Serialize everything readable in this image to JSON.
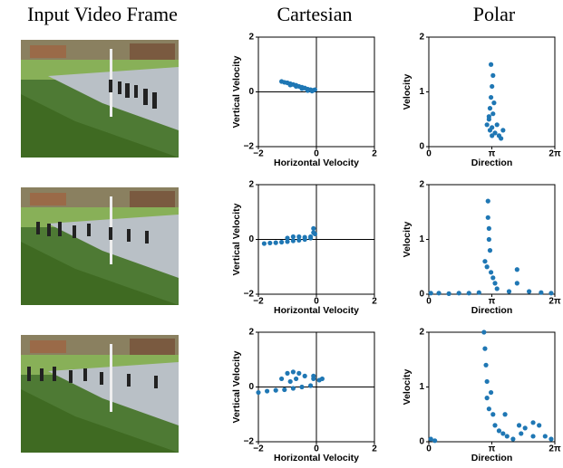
{
  "header": {
    "columns": [
      "Input Video Frame",
      "Cartesian",
      "Polar"
    ]
  },
  "chart_data": [
    {
      "type": "scatter",
      "xlabel": "Horizontal Velocity",
      "ylabel": "Vertical Velocity",
      "color": "#1f77b4",
      "zero_lines": true,
      "xlim": [
        -2,
        2
      ],
      "ylim": [
        -2,
        2
      ],
      "xticks": [
        {
          "value": -2,
          "label": "−2"
        },
        0,
        2
      ],
      "yticks": [
        {
          "value": -2,
          "label": "−2"
        },
        0,
        2
      ],
      "x": [
        -1.2,
        -1.1,
        -1.0,
        -0.9,
        -0.8,
        -0.7,
        -0.6,
        -0.5,
        -0.4,
        -0.3,
        -0.2,
        -0.1,
        -0.05,
        -0.9,
        -0.7,
        -0.5,
        -0.3,
        -0.15
      ],
      "y": [
        0.38,
        0.35,
        0.33,
        0.3,
        0.27,
        0.24,
        0.2,
        0.17,
        0.14,
        0.1,
        0.08,
        0.06,
        0.08,
        0.25,
        0.2,
        0.12,
        0.05,
        0.03
      ]
    },
    {
      "type": "scatter",
      "xlabel": "Direction",
      "ylabel": "Velocity",
      "color": "#1f77b4",
      "zero_lines": false,
      "xlim": [
        0,
        6.28319
      ],
      "ylim": [
        0,
        2
      ],
      "xticks": [
        0,
        {
          "value": 3.14159,
          "label": "π"
        },
        {
          "value": 6.28319,
          "label": "2π"
        }
      ],
      "yticks": [
        0,
        1,
        2
      ],
      "x": [
        3.0,
        3.05,
        3.1,
        3.15,
        3.2,
        3.1,
        3.05,
        3.15,
        3.3,
        3.5,
        3.6,
        3.7,
        3.4,
        3.2,
        3.25,
        2.9,
        3.0,
        3.15
      ],
      "y": [
        0.5,
        0.7,
        0.9,
        1.1,
        1.3,
        1.5,
        0.3,
        0.2,
        0.25,
        0.2,
        0.15,
        0.3,
        0.4,
        0.6,
        0.8,
        0.4,
        0.55,
        0.35
      ]
    },
    {
      "type": "scatter",
      "xlabel": "Horizontal Velocity",
      "ylabel": "Vertical Velocity",
      "color": "#1f77b4",
      "zero_lines": true,
      "xlim": [
        -2,
        2
      ],
      "ylim": [
        -2,
        2
      ],
      "xticks": [
        {
          "value": -2,
          "label": "−2"
        },
        0,
        2
      ],
      "yticks": [
        {
          "value": -2,
          "label": "−2"
        },
        0,
        2
      ],
      "x": [
        -1.8,
        -1.6,
        -1.4,
        -1.2,
        -1.0,
        -0.8,
        -0.6,
        -0.4,
        -0.2,
        -0.1,
        -0.05,
        -1.0,
        -0.8,
        -0.6,
        -0.4,
        -0.2,
        -0.1
      ],
      "y": [
        -0.15,
        -0.13,
        -0.12,
        -0.1,
        -0.08,
        -0.05,
        -0.03,
        0,
        0.05,
        0.4,
        0.2,
        0.05,
        0.1,
        0.1,
        0.08,
        0.1,
        0.25
      ]
    },
    {
      "type": "scatter",
      "xlabel": "Direction",
      "ylabel": "Velocity",
      "color": "#1f77b4",
      "zero_lines": false,
      "xlim": [
        0,
        6.28319
      ],
      "ylim": [
        0,
        2
      ],
      "xticks": [
        0,
        {
          "value": 3.14159,
          "label": "π"
        },
        {
          "value": 6.28319,
          "label": "2π"
        }
      ],
      "yticks": [
        0,
        1,
        2
      ],
      "x": [
        0.1,
        0.5,
        1.0,
        1.5,
        2.0,
        2.5,
        2.95,
        2.95,
        3.0,
        3.0,
        3.05,
        2.8,
        2.9,
        3.1,
        3.2,
        3.3,
        3.4,
        4.4,
        4.4,
        4.0,
        5.0,
        5.6,
        6.1
      ],
      "y": [
        0.02,
        0.02,
        0.01,
        0.02,
        0.02,
        0.03,
        1.7,
        1.4,
        1.2,
        1.0,
        0.8,
        0.6,
        0.5,
        0.4,
        0.3,
        0.2,
        0.1,
        0.45,
        0.2,
        0.05,
        0.05,
        0.03,
        0.02
      ]
    },
    {
      "type": "scatter",
      "xlabel": "Horizontal Velocity",
      "ylabel": "Vertical Velocity",
      "color": "#1f77b4",
      "zero_lines": true,
      "xlim": [
        -2,
        2
      ],
      "ylim": [
        -2,
        2
      ],
      "xticks": [
        {
          "value": -2,
          "label": "−2"
        },
        0,
        2
      ],
      "yticks": [
        {
          "value": -2,
          "label": "−2"
        },
        0,
        2
      ],
      "x": [
        -2.0,
        -1.7,
        -1.4,
        -1.1,
        -0.8,
        -0.5,
        -0.2,
        -0.1,
        -1.2,
        -1.0,
        -0.8,
        -0.6,
        -0.4,
        -0.9,
        -0.7,
        -0.1,
        0.1,
        0.2
      ],
      "y": [
        -0.2,
        -0.15,
        -0.12,
        -0.1,
        -0.05,
        0,
        0.05,
        0.3,
        0.3,
        0.5,
        0.55,
        0.5,
        0.4,
        0.2,
        0.3,
        0.4,
        0.25,
        0.3
      ]
    },
    {
      "type": "scatter",
      "xlabel": "Direction",
      "ylabel": "Velocity",
      "color": "#1f77b4",
      "zero_lines": false,
      "xlim": [
        0,
        6.28319
      ],
      "ylim": [
        0,
        2
      ],
      "xticks": [
        0,
        {
          "value": 3.14159,
          "label": "π"
        },
        {
          "value": 6.28319,
          "label": "2π"
        }
      ],
      "yticks": [
        0,
        1,
        2
      ],
      "x": [
        0.1,
        0.3,
        2.75,
        2.8,
        2.85,
        2.9,
        2.9,
        3.0,
        3.1,
        3.2,
        3.3,
        3.5,
        3.7,
        3.9,
        4.2,
        4.5,
        4.8,
        5.2,
        5.5,
        5.8,
        6.1,
        3.8,
        4.6,
        5.2
      ],
      "y": [
        0.05,
        0.02,
        2.0,
        1.7,
        1.4,
        1.1,
        0.8,
        0.6,
        0.9,
        0.5,
        0.3,
        0.2,
        0.15,
        0.1,
        0.05,
        0.3,
        0.25,
        0.35,
        0.3,
        0.1,
        0.05,
        0.5,
        0.15,
        0.1
      ]
    }
  ]
}
